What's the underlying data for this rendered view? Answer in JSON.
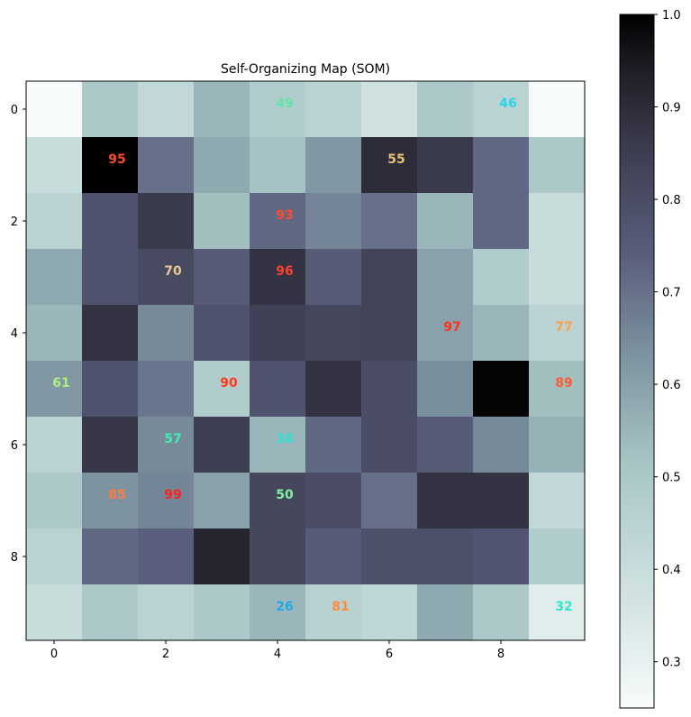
{
  "chart_data": {
    "type": "heatmap",
    "title": "Self-Organizing Map (SOM)",
    "xlabel": "",
    "ylabel": "",
    "x_ticks": [
      0,
      2,
      4,
      6,
      8
    ],
    "y_ticks": [
      0,
      2,
      4,
      6,
      8
    ],
    "xlim": [
      -0.5,
      9.5
    ],
    "ylim": [
      9.5,
      -0.5
    ],
    "grid": false,
    "colormap": "bone_r",
    "colorbar": {
      "range": [
        0.25,
        1.0
      ],
      "ticks": [
        0.3,
        0.4,
        0.5,
        0.6,
        0.7,
        0.8,
        0.9,
        1.0
      ],
      "placement": "right"
    },
    "values": [
      [
        0.25,
        0.5,
        0.42,
        0.55,
        0.48,
        0.45,
        0.38,
        0.5,
        0.45,
        0.25
      ],
      [
        0.4,
        1.0,
        0.7,
        0.58,
        0.52,
        0.62,
        0.9,
        0.86,
        0.72,
        0.5
      ],
      [
        0.45,
        0.78,
        0.86,
        0.53,
        0.72,
        0.66,
        0.7,
        0.55,
        0.72,
        0.4
      ],
      [
        0.58,
        0.78,
        0.81,
        0.75,
        0.88,
        0.75,
        0.83,
        0.6,
        0.48,
        0.4
      ],
      [
        0.55,
        0.88,
        0.65,
        0.78,
        0.84,
        0.82,
        0.83,
        0.6,
        0.55,
        0.45
      ],
      [
        0.62,
        0.78,
        0.69,
        0.48,
        0.78,
        0.88,
        0.8,
        0.64,
        0.99,
        0.53
      ],
      [
        0.45,
        0.87,
        0.65,
        0.85,
        0.55,
        0.72,
        0.8,
        0.75,
        0.65,
        0.56
      ],
      [
        0.5,
        0.63,
        0.66,
        0.6,
        0.82,
        0.8,
        0.7,
        0.88,
        0.88,
        0.42
      ],
      [
        0.45,
        0.72,
        0.74,
        0.92,
        0.82,
        0.75,
        0.79,
        0.79,
        0.77,
        0.48
      ],
      [
        0.4,
        0.5,
        0.45,
        0.5,
        0.55,
        0.46,
        0.43,
        0.58,
        0.5,
        0.32
      ]
    ],
    "annotations": [
      {
        "row": 0,
        "col": 4,
        "text": "49",
        "color": "#5fe6a6"
      },
      {
        "row": 0,
        "col": 8,
        "text": "46",
        "color": "#28d4e8"
      },
      {
        "row": 1,
        "col": 1,
        "text": "95",
        "color": "#ff4a2a"
      },
      {
        "row": 1,
        "col": 6,
        "text": "55",
        "color": "#e8c070"
      },
      {
        "row": 2,
        "col": 4,
        "text": "93",
        "color": "#ff4a2a"
      },
      {
        "row": 3,
        "col": 2,
        "text": "70",
        "color": "#e8c890"
      },
      {
        "row": 3,
        "col": 4,
        "text": "96",
        "color": "#ff4030"
      },
      {
        "row": 4,
        "col": 7,
        "text": "97",
        "color": "#ff3020"
      },
      {
        "row": 4,
        "col": 9,
        "text": "77",
        "color": "#ffa040"
      },
      {
        "row": 5,
        "col": 0,
        "text": "61",
        "color": "#a8f080"
      },
      {
        "row": 5,
        "col": 3,
        "text": "90",
        "color": "#ff3a1a"
      },
      {
        "row": 5,
        "col": 9,
        "text": "89",
        "color": "#ff5a30"
      },
      {
        "row": 6,
        "col": 2,
        "text": "57",
        "color": "#40f0b0"
      },
      {
        "row": 6,
        "col": 4,
        "text": "38",
        "color": "#30e0d0"
      },
      {
        "row": 7,
        "col": 1,
        "text": "85",
        "color": "#ff7a40"
      },
      {
        "row": 7,
        "col": 2,
        "text": "99",
        "color": "#ff2020"
      },
      {
        "row": 7,
        "col": 4,
        "text": "50",
        "color": "#80f0a0"
      },
      {
        "row": 9,
        "col": 4,
        "text": "26",
        "color": "#20a8e8"
      },
      {
        "row": 9,
        "col": 5,
        "text": "81",
        "color": "#ff8a40"
      },
      {
        "row": 9,
        "col": 9,
        "text": "32",
        "color": "#30e8c8"
      }
    ]
  }
}
